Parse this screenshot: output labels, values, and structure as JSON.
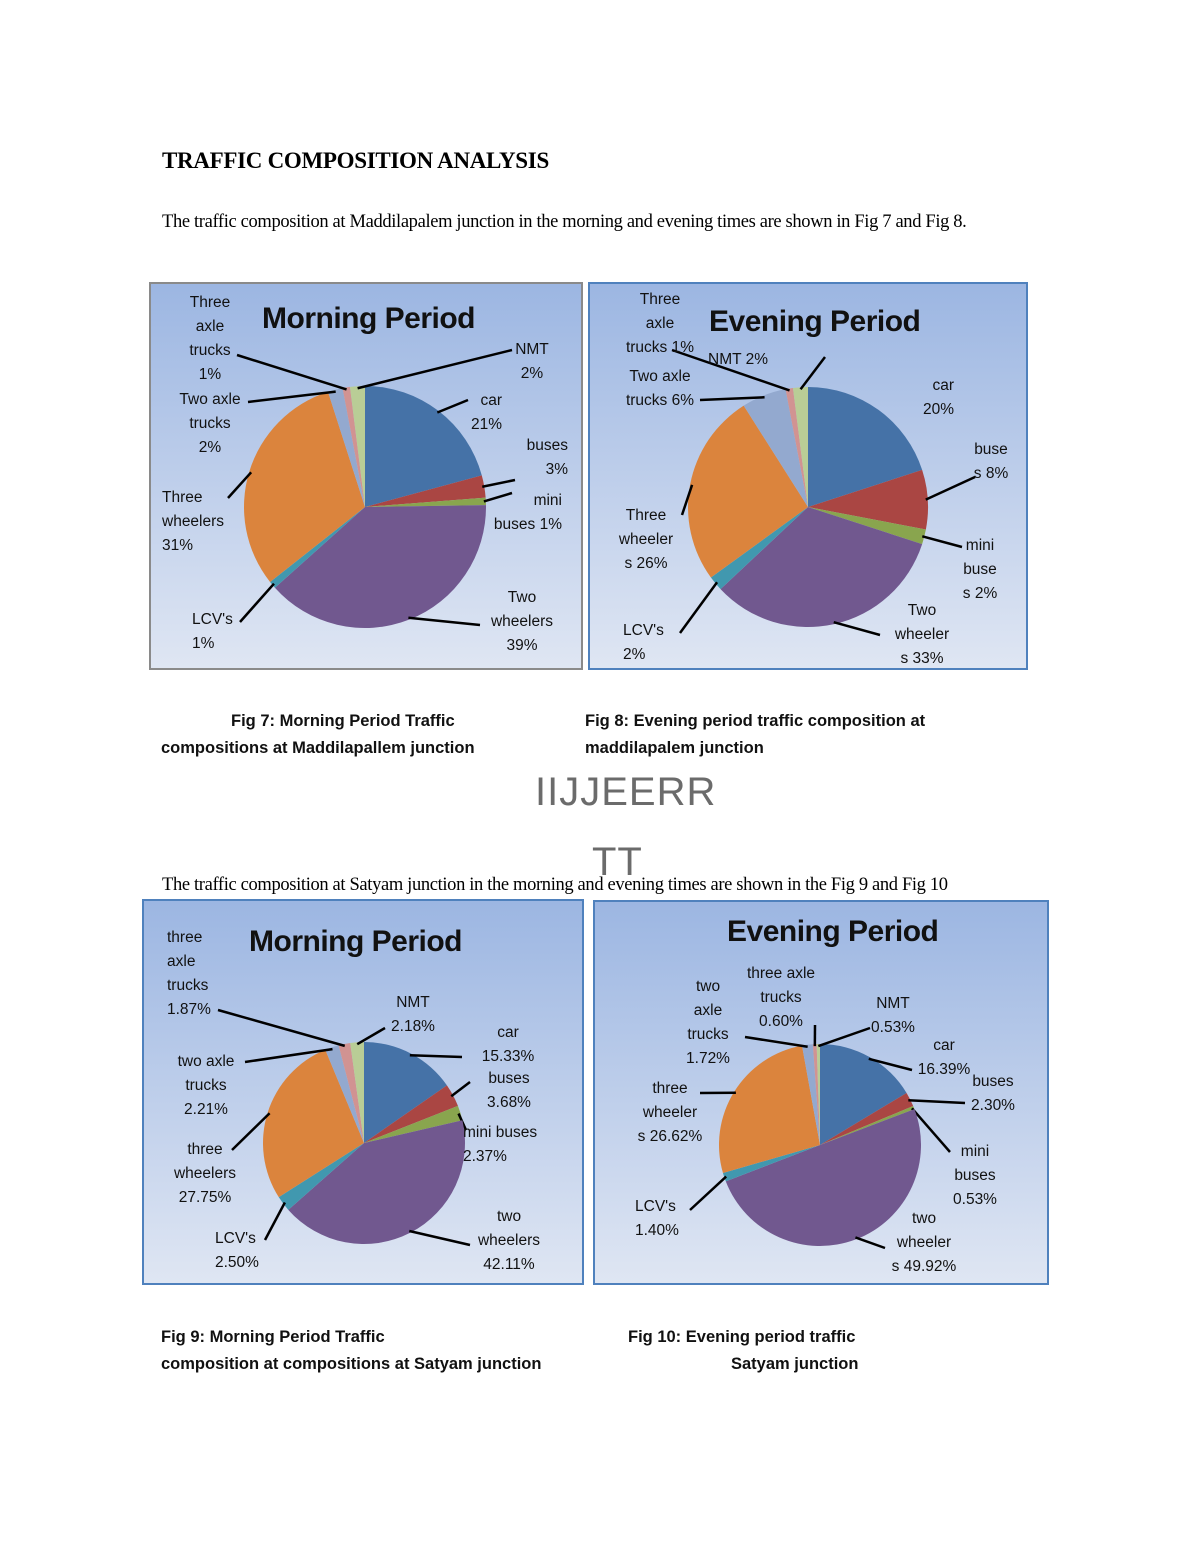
{
  "heading": "TRAFFIC COMPOSITION ANALYSIS",
  "paragraph1": "The traffic composition at Maddilapalem junction in the morning and evening times are shown in Fig 7 and Fig 8.",
  "paragraph2": "The traffic composition at Satyam junction in the morning and evening times are shown in the Fig 9 and Fig 10",
  "watermark": {
    "line1": "IIJJEERR",
    "line2": "TT"
  },
  "captions": {
    "fig7_line1": "Fig 7: Morning Period Traffic",
    "fig7_line2": "compositions at Maddilapallem junction",
    "fig8_line1": "Fig 8: Evening period traffic composition at",
    "fig8_line2": "maddilapalem junction",
    "fig9_line1": "Fig 9: Morning Period Traffic",
    "fig9_line2": "composition at compositions at Satyam junction",
    "fig10_line1": "Fig 10: Evening period traffic",
    "fig10_line2": "Satyam junction"
  },
  "colors": {
    "car": "#4572A7",
    "buses": "#AA4643",
    "mini_buses": "#89A54E",
    "two_wheelers": "#71588F",
    "lcv": "#4198AF",
    "three_wheelers": "#DB843D",
    "two_axle_trucks": "#93A9CF",
    "three_axle_trucks": "#D19392",
    "nmt": "#B9CD96"
  },
  "chart_data": [
    {
      "type": "pie",
      "title": "Morning Period",
      "categories": [
        "car",
        "buses",
        "mini buses",
        "Two wheelers",
        "LCV's",
        "Three wheelers",
        "Two axle trucks",
        "Three axle trucks",
        "NMT"
      ],
      "values": [
        21,
        3,
        1,
        39,
        1,
        31,
        2,
        1,
        2
      ],
      "labels": [
        "car\n21%",
        "buses\n3%",
        "mini\nbuses 1%",
        "Two\nwheelers\n39%",
        "LCV's\n1%",
        "Three\nwheelers\n31%",
        "Two axle\ntrucks\n2%",
        "Three\naxle\ntrucks\n1%",
        "NMT\n2%"
      ]
    },
    {
      "type": "pie",
      "title": "Evening Period",
      "categories": [
        "car",
        "buses",
        "mini buses",
        "Two wheelers",
        "LCV's",
        "Three wheelers",
        "Two axle trucks",
        "Three axle trucks",
        "NMT"
      ],
      "values": [
        20,
        8,
        2,
        33,
        2,
        26,
        6,
        1,
        2
      ],
      "labels": [
        "car\n20%",
        "buse\ns 8%",
        "mini\nbuse\ns 2%",
        "Two\nwheeler\ns 33%",
        "LCV's\n2%",
        "Three\nwheeler\ns 26%",
        "Two axle\ntrucks 6%",
        "Three\naxle\ntrucks 1%",
        "NMT 2%"
      ]
    },
    {
      "type": "pie",
      "title": "Morning Period",
      "categories": [
        "car",
        "buses",
        "mini buses",
        "two wheelers",
        "LCV's",
        "three wheelers",
        "two axle trucks",
        "three axle trucks",
        "NMT"
      ],
      "values": [
        15.33,
        3.68,
        2.37,
        42.11,
        2.5,
        27.75,
        2.21,
        1.87,
        2.18
      ],
      "labels": [
        "car\n15.33%",
        "buses\n3.68%",
        "mini buses\n2.37%",
        "two\nwheelers\n42.11%",
        "LCV's\n2.50%",
        "three\nwheelers\n27.75%",
        "two axle\ntrucks\n2.21%",
        "three\naxle\ntrucks\n1.87%",
        "NMT\n2.18%"
      ]
    },
    {
      "type": "pie",
      "title": "Evening Period",
      "categories": [
        "car",
        "buses",
        "mini buses",
        "two wheelers",
        "LCV's",
        "three wheelers",
        "two axle trucks",
        "three axle trucks",
        "NMT"
      ],
      "values": [
        16.39,
        2.3,
        0.53,
        49.92,
        1.4,
        26.62,
        1.72,
        0.6,
        0.53
      ],
      "labels": [
        "car\n16.39%",
        "buses\n2.30%",
        "mini\nbuses\n0.53%",
        "two\nwheeler\ns 49.92%",
        "LCV's\n1.40%",
        "three\nwheeler\ns 26.62%",
        "two axle\ntrucks\n1.72%",
        "three axle\ntrucks\n0.60%",
        "NMT\n0.53%"
      ]
    }
  ]
}
